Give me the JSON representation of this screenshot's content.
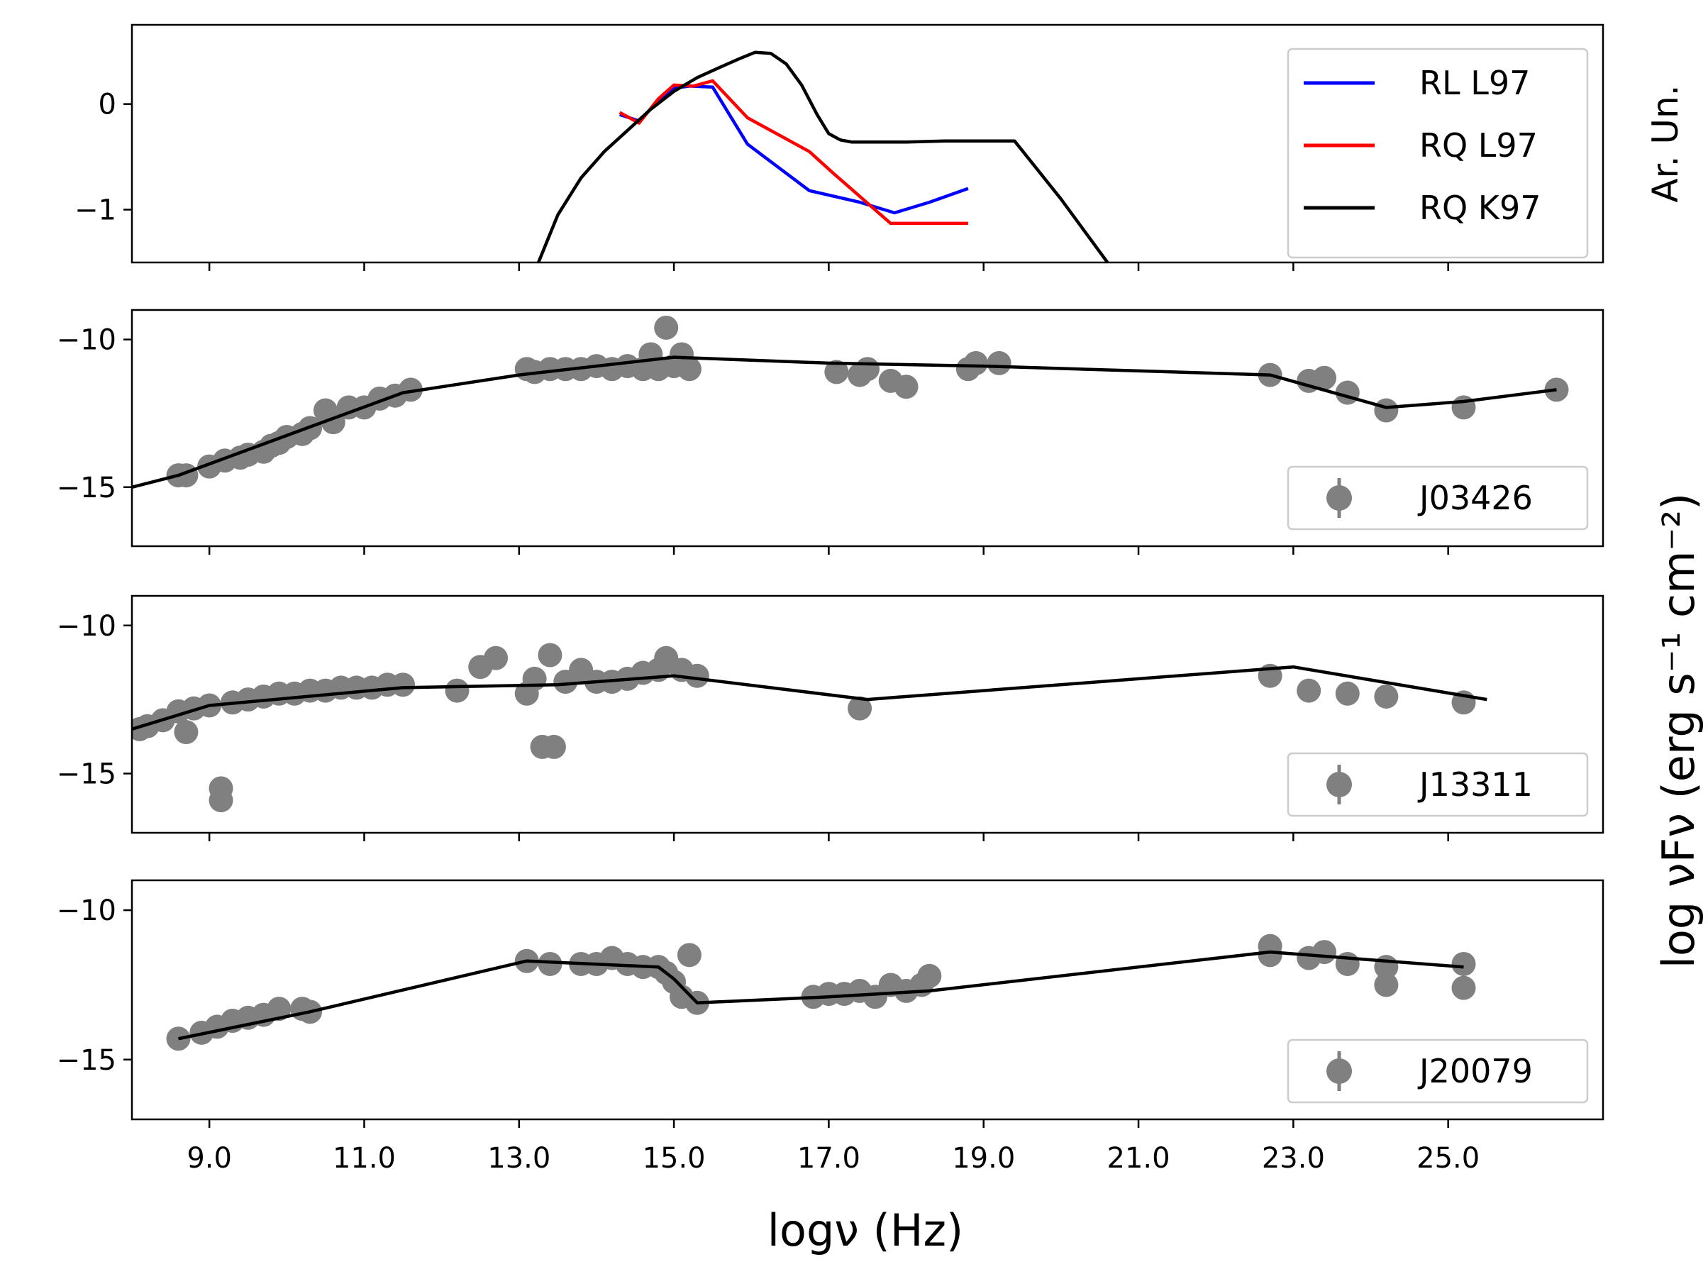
{
  "chart_data": {
    "type": "scatter",
    "xlabel": "logν (Hz)",
    "ylabel": "log νFν (erg s⁻¹ cm⁻²)",
    "xlim": [
      8,
      27
    ],
    "x_ticks": [
      "9.0",
      "11.0",
      "13.0",
      "15.0",
      "17.0",
      "19.0",
      "21.0",
      "23.0",
      "25.0"
    ],
    "panels": [
      {
        "id": "top",
        "ylabel": "Ar. Un.",
        "ylim": [
          -1.5,
          0.75
        ],
        "y_ticks": [
          {
            "v": 0,
            "t": "0"
          },
          {
            "v": -1,
            "t": "−1"
          }
        ],
        "legend_position": "top-right",
        "series": [
          {
            "name": "RL L97",
            "color": "#0000ff",
            "kind": "line",
            "x": [
              14.3,
              14.55,
              14.8,
              15.0,
              15.2,
              15.5,
              15.95,
              16.75,
              17.4,
              17.85,
              18.3,
              18.8
            ],
            "y": [
              -0.1,
              -0.16,
              0.03,
              0.15,
              0.17,
              0.16,
              -0.38,
              -0.82,
              -0.93,
              -1.03,
              -0.93,
              -0.8
            ]
          },
          {
            "name": "RQ L97",
            "color": "#ff0000",
            "kind": "line",
            "x": [
              14.3,
              14.55,
              14.8,
              15.0,
              15.25,
              15.5,
              15.95,
              16.75,
              17.05,
              17.8,
              18.3,
              18.8
            ],
            "y": [
              -0.08,
              -0.18,
              0.05,
              0.18,
              0.17,
              0.22,
              -0.13,
              -0.45,
              -0.65,
              -1.13,
              -1.13,
              -1.13
            ]
          },
          {
            "name": "RQ K97",
            "color": "#000000",
            "kind": "line",
            "x": [
              13.25,
              13.5,
              13.8,
              14.1,
              14.4,
              14.7,
              15.0,
              15.3,
              15.6,
              15.85,
              16.05,
              16.25,
              16.45,
              16.65,
              16.85,
              17.0,
              17.15,
              17.3,
              17.5,
              18.0,
              18.5,
              19.0,
              19.4,
              20.0,
              20.6
            ],
            "y": [
              -1.5,
              -1.05,
              -0.7,
              -0.45,
              -0.25,
              -0.05,
              0.12,
              0.25,
              0.35,
              0.43,
              0.49,
              0.48,
              0.38,
              0.18,
              -0.1,
              -0.28,
              -0.34,
              -0.36,
              -0.36,
              -0.36,
              -0.35,
              -0.35,
              -0.35,
              -0.9,
              -1.5
            ]
          }
        ]
      },
      {
        "id": "j03426",
        "ylim": [
          -17,
          -9
        ],
        "y_ticks": [
          {
            "v": -10,
            "t": "−10"
          },
          {
            "v": -15,
            "t": "−15"
          }
        ],
        "legend_position": "lower-right",
        "series": [
          {
            "name": "J03426",
            "color": "#808080",
            "kind": "points",
            "x": [
              8.6,
              8.7,
              9.0,
              9.2,
              9.4,
              9.5,
              9.7,
              9.8,
              9.9,
              10.0,
              10.2,
              10.3,
              10.5,
              10.6,
              10.8,
              11.0,
              11.2,
              11.4,
              11.6,
              13.1,
              13.2,
              13.4,
              13.6,
              13.8,
              14.0,
              14.2,
              14.4,
              14.6,
              14.7,
              14.8,
              14.9,
              15.0,
              15.1,
              15.2,
              17.1,
              17.4,
              17.5,
              17.8,
              18.0,
              18.8,
              18.9,
              19.2,
              22.7,
              23.2,
              23.4,
              23.7,
              24.2,
              25.2,
              26.4
            ],
            "y": [
              -14.6,
              -14.6,
              -14.3,
              -14.1,
              -14.0,
              -13.9,
              -13.8,
              -13.6,
              -13.5,
              -13.3,
              -13.2,
              -13.0,
              -12.4,
              -12.8,
              -12.3,
              -12.3,
              -12.0,
              -11.9,
              -11.7,
              -11.0,
              -11.1,
              -11.0,
              -11.0,
              -11.0,
              -10.9,
              -11.0,
              -10.9,
              -11.0,
              -10.5,
              -11.0,
              -9.6,
              -10.9,
              -10.5,
              -11.0,
              -11.1,
              -11.2,
              -11.0,
              -11.4,
              -11.6,
              -11.0,
              -10.8,
              -10.8,
              -11.2,
              -11.4,
              -11.3,
              -11.8,
              -12.4,
              -12.3,
              -11.7
            ]
          },
          {
            "name": "",
            "color": "#000000",
            "kind": "line",
            "x": [
              8.0,
              8.6,
              11.5,
              13.0,
              15.0,
              17.0,
              19.0,
              22.7,
              24.2,
              25.2,
              26.4
            ],
            "y": [
              -15.0,
              -14.6,
              -11.8,
              -11.2,
              -10.6,
              -10.8,
              -10.9,
              -11.2,
              -12.3,
              -12.1,
              -11.7
            ]
          }
        ]
      },
      {
        "id": "j13311",
        "ylim": [
          -17,
          -9
        ],
        "y_ticks": [
          {
            "v": -10,
            "t": "−10"
          },
          {
            "v": -15,
            "t": "−15"
          }
        ],
        "legend_position": "lower-right",
        "series": [
          {
            "name": "J13311",
            "color": "#808080",
            "kind": "points",
            "x": [
              8.1,
              8.2,
              8.4,
              8.6,
              8.8,
              8.7,
              9.0,
              9.15,
              9.15,
              9.3,
              9.5,
              9.7,
              9.9,
              10.1,
              10.3,
              10.5,
              10.7,
              10.9,
              11.1,
              11.3,
              11.5,
              12.2,
              12.5,
              12.7,
              13.1,
              13.2,
              13.3,
              13.4,
              13.45,
              13.6,
              13.8,
              14.0,
              14.2,
              14.4,
              14.6,
              14.8,
              14.9,
              15.1,
              15.3,
              17.4,
              22.7,
              23.2,
              23.7,
              24.2,
              25.2
            ],
            "y": [
              -13.5,
              -13.4,
              -13.2,
              -12.9,
              -12.8,
              -13.6,
              -12.7,
              -15.5,
              -15.9,
              -12.6,
              -12.5,
              -12.4,
              -12.3,
              -12.3,
              -12.2,
              -12.2,
              -12.1,
              -12.1,
              -12.1,
              -12.0,
              -12.0,
              -12.2,
              -11.4,
              -11.1,
              -12.3,
              -11.8,
              -14.1,
              -11.0,
              -14.1,
              -11.9,
              -11.5,
              -11.9,
              -11.9,
              -11.8,
              -11.6,
              -11.5,
              -11.1,
              -11.5,
              -11.7,
              -12.8,
              -11.7,
              -12.2,
              -12.3,
              -12.4,
              -12.6
            ]
          },
          {
            "name": "",
            "color": "#000000",
            "kind": "line",
            "x": [
              8.0,
              9.0,
              11.5,
              13.5,
              15.0,
              17.5,
              23.0,
              25.5
            ],
            "y": [
              -13.5,
              -12.7,
              -12.1,
              -12.0,
              -11.7,
              -12.5,
              -11.4,
              -12.5
            ]
          }
        ]
      },
      {
        "id": "j20079",
        "ylim": [
          -17,
          -9
        ],
        "y_ticks": [
          {
            "v": -10,
            "t": "−10"
          },
          {
            "v": -15,
            "t": "−15"
          }
        ],
        "legend_position": "lower-right",
        "series": [
          {
            "name": "J20079",
            "color": "#808080",
            "kind": "points",
            "x": [
              8.6,
              8.9,
              9.1,
              9.3,
              9.5,
              9.7,
              9.9,
              10.2,
              10.3,
              13.1,
              13.4,
              13.8,
              14.0,
              14.2,
              14.4,
              14.6,
              14.8,
              14.9,
              15.0,
              15.1,
              15.2,
              15.3,
              16.8,
              17.0,
              17.2,
              17.4,
              17.6,
              17.8,
              18.0,
              18.2,
              18.3,
              22.7,
              22.7,
              23.2,
              23.4,
              23.7,
              24.2,
              24.2,
              25.2,
              25.2
            ],
            "y": [
              -14.3,
              -14.1,
              -13.9,
              -13.7,
              -13.6,
              -13.5,
              -13.3,
              -13.3,
              -13.4,
              -11.7,
              -11.8,
              -11.8,
              -11.8,
              -11.6,
              -11.8,
              -11.9,
              -11.9,
              -12.1,
              -12.4,
              -12.9,
              -11.5,
              -13.1,
              -12.9,
              -12.8,
              -12.8,
              -12.7,
              -12.9,
              -12.5,
              -12.7,
              -12.5,
              -12.2,
              -11.2,
              -11.5,
              -11.6,
              -11.4,
              -11.8,
              -11.9,
              -12.5,
              -11.8,
              -12.6
            ]
          },
          {
            "name": "",
            "color": "#000000",
            "kind": "line",
            "x": [
              8.6,
              10.3,
              13.1,
              14.8,
              15.0,
              15.3,
              17.0,
              18.3,
              22.7,
              25.2
            ],
            "y": [
              -14.3,
              -13.4,
              -11.7,
              -11.9,
              -12.3,
              -13.1,
              -12.9,
              -12.7,
              -11.4,
              -11.9
            ]
          }
        ]
      }
    ]
  }
}
